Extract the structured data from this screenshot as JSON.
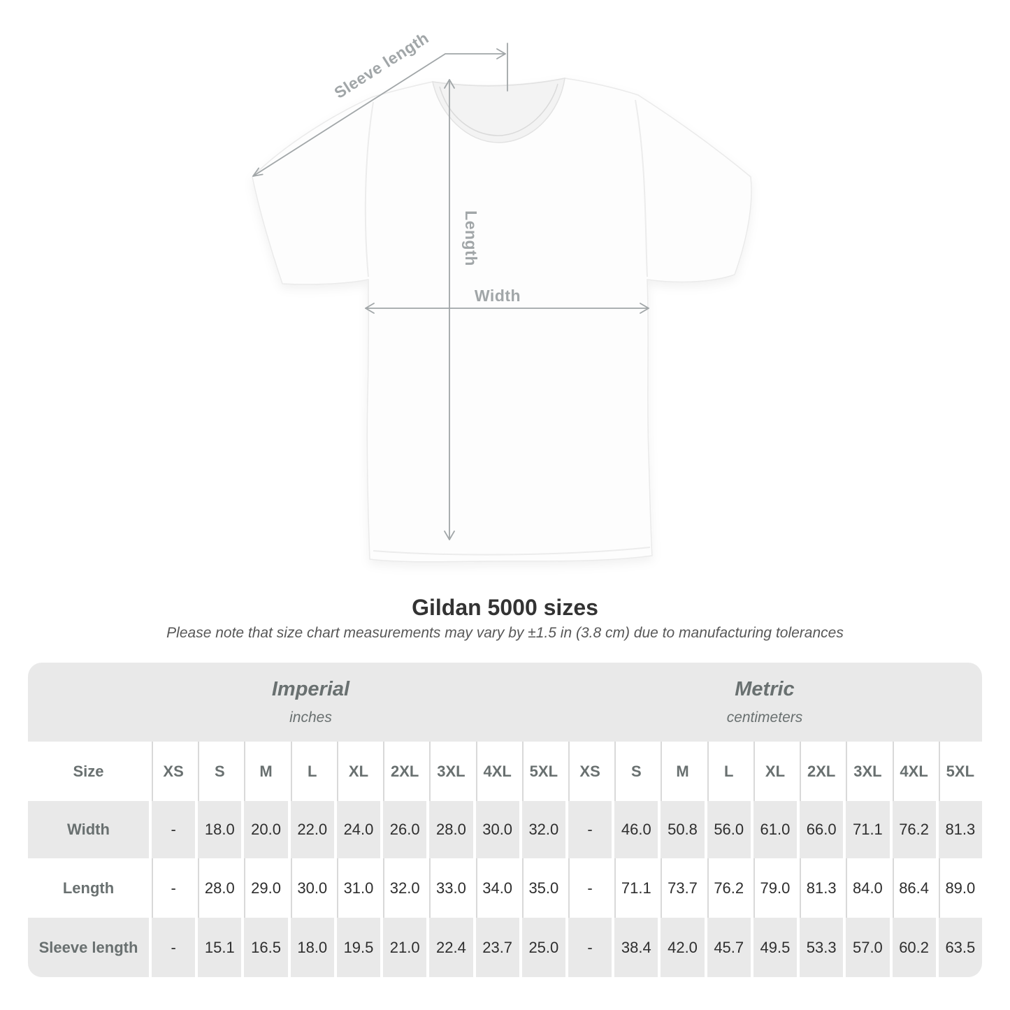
{
  "diagram": {
    "sleeve_label": "Sleeve length",
    "length_label": "Length",
    "width_label": "Width"
  },
  "title": "Gildan 5000 sizes",
  "subtitle": "Please note that size chart measurements may vary by ±1.5 in (3.8 cm) due to manufacturing tolerances",
  "colors": {
    "line": "#a1a6a8",
    "band": "#e9e9e9",
    "separator": "#d9d9d9",
    "value": "#2e2e2e",
    "heading": "#697070",
    "title": "#333333",
    "subtitle": "#575757"
  },
  "table": {
    "size_header": "Size",
    "groups": [
      {
        "label": "Imperial",
        "sublabel": "inches"
      },
      {
        "label": "Metric",
        "sublabel": "centimeters"
      }
    ],
    "sizes": [
      "XS",
      "S",
      "M",
      "L",
      "XL",
      "2XL",
      "3XL",
      "4XL",
      "5XL"
    ],
    "rows": [
      {
        "label": "Width",
        "imperial": [
          "-",
          "18.0",
          "20.0",
          "22.0",
          "24.0",
          "26.0",
          "28.0",
          "30.0",
          "32.0"
        ],
        "metric": [
          "-",
          "46.0",
          "50.8",
          "56.0",
          "61.0",
          "66.0",
          "71.1",
          "76.2",
          "81.3"
        ]
      },
      {
        "label": "Length",
        "imperial": [
          "-",
          "28.0",
          "29.0",
          "30.0",
          "31.0",
          "32.0",
          "33.0",
          "34.0",
          "35.0"
        ],
        "metric": [
          "-",
          "71.1",
          "73.7",
          "76.2",
          "79.0",
          "81.3",
          "84.0",
          "86.4",
          "89.0"
        ]
      },
      {
        "label": "Sleeve length",
        "imperial": [
          "-",
          "15.1",
          "16.5",
          "18.0",
          "19.5",
          "21.0",
          "22.4",
          "23.7",
          "25.0"
        ],
        "metric": [
          "-",
          "38.4",
          "42.0",
          "45.7",
          "49.5",
          "53.3",
          "57.0",
          "60.2",
          "63.5"
        ]
      }
    ]
  },
  "chart_data": {
    "type": "table",
    "title": "Gildan 5000 sizes",
    "subtitle": "Please note that size chart measurements may vary by ±1.5 in (3.8 cm) due to manufacturing tolerances",
    "column_groups": [
      "Imperial (inches)",
      "Metric (centimeters)"
    ],
    "columns": [
      "XS",
      "S",
      "M",
      "L",
      "XL",
      "2XL",
      "3XL",
      "4XL",
      "5XL"
    ],
    "rows": [
      {
        "label": "Width",
        "imperial": [
          null,
          18.0,
          20.0,
          22.0,
          24.0,
          26.0,
          28.0,
          30.0,
          32.0
        ],
        "metric": [
          null,
          46.0,
          50.8,
          56.0,
          61.0,
          66.0,
          71.1,
          76.2,
          81.3
        ]
      },
      {
        "label": "Length",
        "imperial": [
          null,
          28.0,
          29.0,
          30.0,
          31.0,
          32.0,
          33.0,
          34.0,
          35.0
        ],
        "metric": [
          null,
          71.1,
          73.7,
          76.2,
          79.0,
          81.3,
          84.0,
          86.4,
          89.0
        ]
      },
      {
        "label": "Sleeve length",
        "imperial": [
          null,
          15.1,
          16.5,
          18.0,
          19.5,
          21.0,
          22.4,
          23.7,
          25.0
        ],
        "metric": [
          null,
          38.4,
          42.0,
          45.7,
          49.5,
          53.3,
          57.0,
          60.2,
          63.5
        ]
      }
    ]
  }
}
